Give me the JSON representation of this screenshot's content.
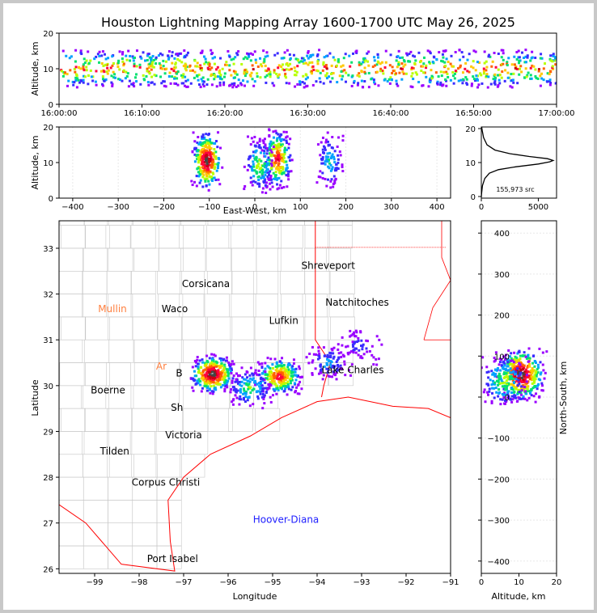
{
  "title": "Houston Lightning Mapping Array 1600-1700 UTC May 26, 2025",
  "colors": {
    "density": [
      "#ffffff",
      "#9a00ff",
      "#3a2bff",
      "#00a0ff",
      "#00e070",
      "#b8ff00",
      "#ffc800",
      "#ff6000",
      "#ff0040",
      "#c80010",
      "#444444",
      "#cfcfcf"
    ],
    "map_lines": "#c8c8c8",
    "state_lines": "#ff0000",
    "city_black": "#000000",
    "city_orange": "#ff8040",
    "city_gold": "#f0a000",
    "city_blue": "#2020ff"
  },
  "chart_data": [
    {
      "id": "time_height",
      "type": "heatmap",
      "ylabel": "Altitude, km",
      "ylim": [
        0,
        20
      ],
      "yticks": [
        "0",
        "10",
        "20"
      ],
      "xticks": [
        "16:00:00",
        "16:10:00",
        "16:20:00",
        "16:30:00",
        "16:40:00",
        "16:50:00",
        "17:00:00"
      ],
      "x_range_minutes": [
        0,
        60
      ],
      "band_center_km": 10,
      "band_core_km": [
        8,
        12
      ]
    },
    {
      "id": "east_west_height",
      "type": "heatmap",
      "xlabel": "East-West, km",
      "ylabel": "Altitude, km",
      "xlim": [
        -430,
        430
      ],
      "ylim": [
        0,
        20
      ],
      "xticks": [
        "−400",
        "−300",
        "−200",
        "−100",
        "0",
        "100",
        "200",
        "300",
        "400"
      ],
      "yticks": [
        "0",
        "10",
        "20"
      ],
      "cells": [
        {
          "x": -105,
          "z": 10.5,
          "intensity": 1.0
        },
        {
          "x": 50,
          "z": 11,
          "intensity": 0.8
        },
        {
          "x": 10,
          "z": 9,
          "intensity": 0.5
        },
        {
          "x": 165,
          "z": 10.5,
          "intensity": 0.35
        }
      ]
    },
    {
      "id": "altitude_histogram",
      "type": "line",
      "ylim": [
        0,
        20
      ],
      "xlim": [
        0,
        6600
      ],
      "xticks": [
        "0",
        "5000"
      ],
      "yticks": [
        "0",
        "10",
        "20"
      ],
      "annotation": "155,973 src",
      "points": [
        [
          0,
          0.3
        ],
        [
          30,
          1.5
        ],
        [
          100,
          3.5
        ],
        [
          300,
          5.5
        ],
        [
          700,
          7
        ],
        [
          1500,
          8
        ],
        [
          3000,
          8.8
        ],
        [
          5000,
          9.6
        ],
        [
          6000,
          10.2
        ],
        [
          6300,
          10.6
        ],
        [
          5800,
          11.1
        ],
        [
          4200,
          11.7
        ],
        [
          2500,
          12.5
        ],
        [
          1200,
          13.5
        ],
        [
          500,
          15
        ],
        [
          200,
          17
        ],
        [
          80,
          19
        ],
        [
          30,
          20
        ]
      ]
    },
    {
      "id": "plan_view_map",
      "type": "heatmap",
      "xlabel": "Longitude",
      "ylabel": "Latitude",
      "xlim": [
        -99.8,
        -91
      ],
      "ylim": [
        25.9,
        33.6
      ],
      "xticks": [
        "−99",
        "−98",
        "−97",
        "−96",
        "−95",
        "−94",
        "−93",
        "−92",
        "−91"
      ],
      "yticks": [
        "26",
        "27",
        "28",
        "29",
        "30",
        "31",
        "32",
        "33"
      ],
      "cities": [
        {
          "name": "Shreveport",
          "lon": -93.75,
          "lat": 32.55,
          "color": "black"
        },
        {
          "name": "Corsicana",
          "lon": -96.5,
          "lat": 32.15,
          "color": "black"
        },
        {
          "name": "Natchitoches",
          "lon": -93.1,
          "lat": 31.75,
          "color": "black"
        },
        {
          "name": "Mullin",
          "lon": -98.6,
          "lat": 31.6,
          "color": "orange"
        },
        {
          "name": "Waco",
          "lon": -97.2,
          "lat": 31.6,
          "color": "black"
        },
        {
          "name": "Lufkin",
          "lon": -94.75,
          "lat": 31.35,
          "color": "black"
        },
        {
          "name": "Lake Charles",
          "lon": -93.2,
          "lat": 30.27,
          "color": "black"
        },
        {
          "name": "Boerne",
          "lon": -98.7,
          "lat": 29.83,
          "color": "black"
        },
        {
          "name": "Victoria",
          "lon": -97.0,
          "lat": 28.85,
          "color": "black"
        },
        {
          "name": "Tilden",
          "lon": -98.55,
          "lat": 28.5,
          "color": "black"
        },
        {
          "name": "Corpus Christi",
          "lon": -97.4,
          "lat": 27.82,
          "color": "black"
        },
        {
          "name": "Hoover-Diana",
          "lon": -94.7,
          "lat": 27.0,
          "color": "blue"
        },
        {
          "name": "Port Isabel",
          "lon": -97.25,
          "lat": 26.15,
          "color": "black"
        },
        {
          "name": "Ar",
          "lon": -97.5,
          "lat": 30.35,
          "color": "orange"
        },
        {
          "name": "Sh",
          "lon": -97.15,
          "lat": 29.45,
          "color": "black"
        },
        {
          "name": "B",
          "lon": -97.1,
          "lat": 30.2,
          "color": "black"
        }
      ],
      "cells": [
        {
          "lon": -96.35,
          "lat": 30.25,
          "intensity": 1.0
        },
        {
          "lon": -94.85,
          "lat": 30.2,
          "intensity": 0.8
        },
        {
          "lon": -95.5,
          "lat": 29.95,
          "intensity": 0.45
        },
        {
          "lon": -93.75,
          "lat": 30.5,
          "intensity": 0.3
        },
        {
          "lon": -93.05,
          "lat": 30.85,
          "intensity": 0.2
        }
      ]
    },
    {
      "id": "north_south_height",
      "type": "heatmap",
      "xlabel": "Altitude, km",
      "ylabel": "North-South, km",
      "xlim": [
        0,
        20
      ],
      "ylim": [
        -430,
        430
      ],
      "xticks": [
        "0",
        "10",
        "20"
      ],
      "yticks": [
        "−400",
        "−300",
        "−200",
        "−100",
        "0",
        "100",
        "200",
        "300",
        "400"
      ],
      "cells": [
        {
          "z": 10.5,
          "y": 55,
          "intensity": 1.0
        },
        {
          "z": 6,
          "y": 40,
          "intensity": 0.5
        }
      ]
    }
  ]
}
